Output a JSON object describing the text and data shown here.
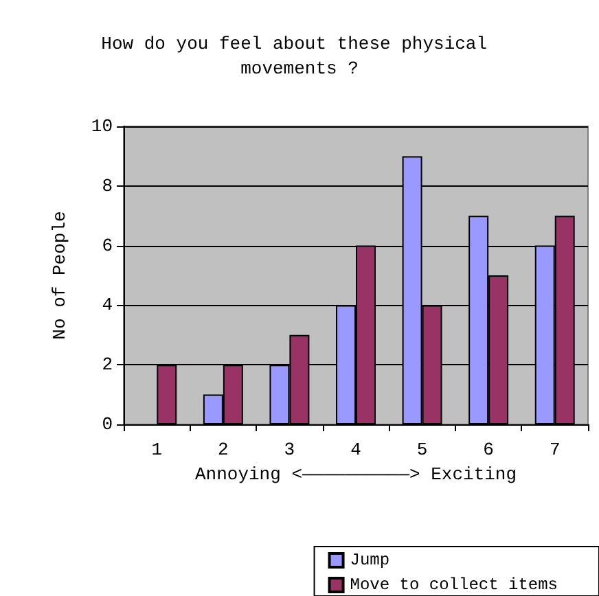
{
  "chart_data": {
    "type": "bar",
    "title": "How do you feel about these physical movements ?",
    "xlabel": "Annoying <——————————> Exciting",
    "ylabel": "No of People",
    "categories": [
      "1",
      "2",
      "3",
      "4",
      "5",
      "6",
      "7"
    ],
    "series": [
      {
        "name": "Jump",
        "color": "#9999ff",
        "values": [
          0,
          1,
          2,
          4,
          9,
          7,
          6
        ]
      },
      {
        "name": "Move to collect items",
        "color": "#993366",
        "values": [
          2,
          2,
          3,
          6,
          4,
          5,
          7
        ]
      }
    ],
    "ylim": [
      0,
      10
    ],
    "yticks": [
      0,
      2,
      4,
      6,
      8,
      10
    ],
    "grid": "y",
    "legend": "bottom right"
  }
}
